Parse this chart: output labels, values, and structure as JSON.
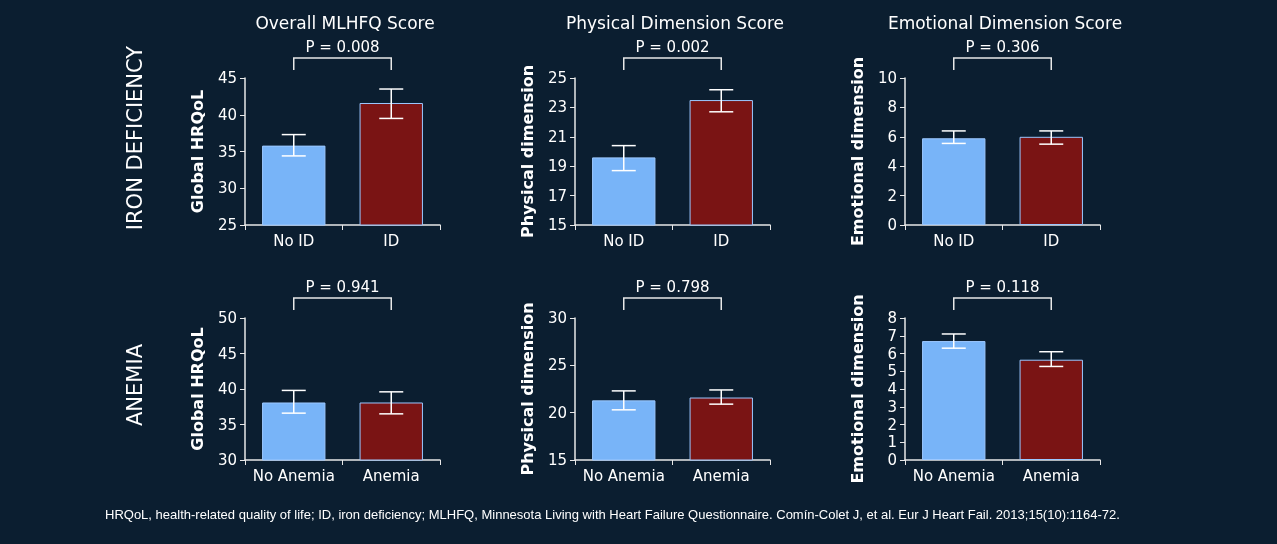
{
  "chart_data": [
    {
      "type": "bar",
      "title": "Overall MLHFQ Score",
      "ylabel": "Global HRQoL",
      "categories": [
        "No ID",
        "ID"
      ],
      "values": [
        35.8,
        41.6
      ],
      "colors": [
        "#78b4f8",
        "#7a1414"
      ],
      "errors": [
        [
          34.4,
          37.3
        ],
        [
          39.5,
          43.5
        ]
      ],
      "ylim": [
        25,
        45
      ],
      "yticks": [
        25,
        30,
        35,
        40,
        45
      ],
      "grid": false,
      "annotations": [
        "P = 0.008",
        "IRON DEFICIENCY"
      ]
    },
    {
      "type": "bar",
      "title": "Physical Dimension Score",
      "ylabel": "Physical dimension",
      "categories": [
        "No ID",
        "ID"
      ],
      "values": [
        19.6,
        23.5
      ],
      "colors": [
        "#78b4f8",
        "#7a1414"
      ],
      "errors": [
        [
          18.7,
          20.4
        ],
        [
          22.7,
          24.2
        ]
      ],
      "ylim": [
        15,
        25
      ],
      "yticks": [
        15,
        17,
        19,
        21,
        23,
        25
      ],
      "grid": false,
      "annotations": [
        "P = 0.002"
      ]
    },
    {
      "type": "bar",
      "title": "Emotional Dimension Score",
      "ylabel": "Emotional dimension",
      "categories": [
        "No ID",
        "ID"
      ],
      "values": [
        5.9,
        6.0
      ],
      "colors": [
        "#78b4f8",
        "#7a1414"
      ],
      "errors": [
        [
          5.55,
          6.4
        ],
        [
          5.5,
          6.4
        ]
      ],
      "ylim": [
        0,
        10
      ],
      "yticks": [
        0,
        2,
        4,
        6,
        8,
        10
      ],
      "grid": false,
      "annotations": [
        "P = 0.306"
      ]
    },
    {
      "type": "bar",
      "ylabel": "Global HRQoL",
      "categories": [
        "No Anemia",
        "Anemia"
      ],
      "values": [
        38.1,
        38.1
      ],
      "colors": [
        "#78b4f8",
        "#7a1414"
      ],
      "errors": [
        [
          36.6,
          39.8
        ],
        [
          36.5,
          39.6
        ]
      ],
      "ylim": [
        30,
        50
      ],
      "yticks": [
        30,
        35,
        40,
        45,
        50
      ],
      "grid": false,
      "annotations": [
        "P = 0.941",
        "ANEMIA"
      ]
    },
    {
      "type": "bar",
      "ylabel": "Physical dimension",
      "categories": [
        "No Anemia",
        "Anemia"
      ],
      "values": [
        21.3,
        21.6
      ],
      "colors": [
        "#78b4f8",
        "#7a1414"
      ],
      "errors": [
        [
          20.3,
          22.3
        ],
        [
          20.9,
          22.4
        ]
      ],
      "ylim": [
        15,
        30
      ],
      "yticks": [
        15,
        20,
        25,
        30
      ],
      "grid": false,
      "annotations": [
        "P = 0.798"
      ]
    },
    {
      "type": "bar",
      "ylabel": "Emotional dimension",
      "categories": [
        "No Anemia",
        "Anemia"
      ],
      "values": [
        6.7,
        5.65
      ],
      "colors": [
        "#78b4f8",
        "#7a1414"
      ],
      "errors": [
        [
          6.3,
          7.1
        ],
        [
          5.27,
          6.1
        ]
      ],
      "ylim": [
        0,
        8
      ],
      "yticks": [
        0,
        1,
        2,
        3,
        4,
        5,
        6,
        7,
        8
      ],
      "grid": false,
      "annotations": [
        "P = 0.118",
        null,
        "HRQoL, health-related quality of life; ID, iron deficiency; MLHFQ, Minnesota Living with Heart Failure Questionnaire. Comín-Colet J, et al. Eur J Heart Fail. 2013;15(10):1164-72."
      ]
    }
  ]
}
